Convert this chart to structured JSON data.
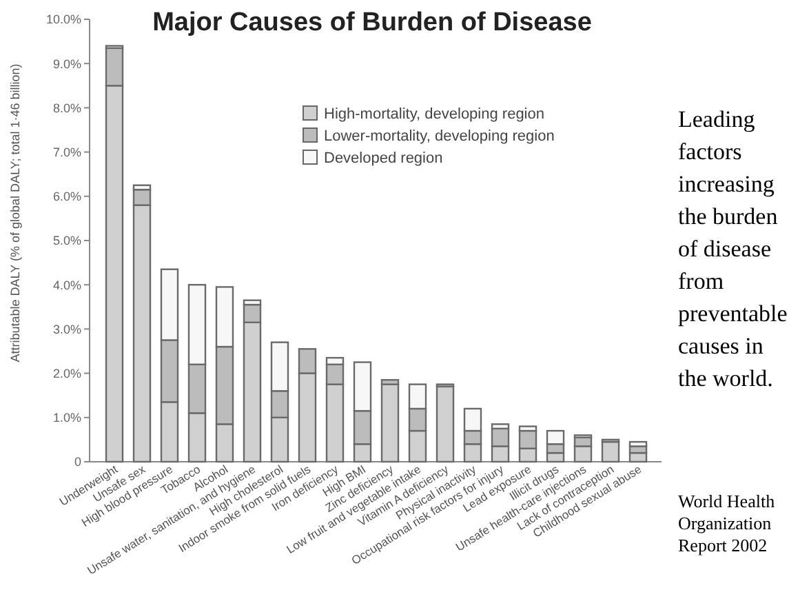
{
  "chart_data": {
    "type": "bar",
    "stacked": true,
    "title": "Major Causes of Burden of Disease",
    "ylabel": "Attributable DALY (% of global DALY; total 1·46 billion)",
    "categories": [
      "Underweight",
      "Unsafe sex",
      "High blood pressure",
      "Tobacco",
      "Alcohol",
      "Unsafe water, sanitation, and hygiene",
      "High cholesterol",
      "Indoor smoke from solid fuels",
      "Iron deficiency",
      "High BMI",
      "Zinc deficiency",
      "Low fruit and vegetable intake",
      "Vitamin A deficiency",
      "Physical inactivity",
      "Occupational risk factors for injury",
      "Lead exposure",
      "Illicit drugs",
      "Unsafe health-care injections",
      "Lack of contraception",
      "Childhood sexual abuse"
    ],
    "series": [
      {
        "name": "High-mortality, developing region",
        "color": "#d0d0d0",
        "values": [
          8.5,
          5.8,
          1.35,
          1.1,
          0.85,
          3.15,
          1.0,
          2.0,
          1.75,
          0.4,
          1.75,
          0.7,
          1.7,
          0.4,
          0.35,
          0.3,
          0.2,
          0.35,
          0.45,
          0.2
        ]
      },
      {
        "name": "Lower-mortality, developing region",
        "color": "#bcbcbc",
        "values": [
          0.85,
          0.35,
          1.4,
          1.1,
          1.75,
          0.4,
          0.6,
          0.55,
          0.45,
          0.75,
          0.1,
          0.5,
          0.05,
          0.3,
          0.4,
          0.4,
          0.2,
          0.2,
          0.05,
          0.15
        ]
      },
      {
        "name": "Developed region",
        "color": "#f7f7f7",
        "values": [
          0.05,
          0.1,
          1.6,
          1.8,
          1.35,
          0.1,
          1.1,
          0,
          0.15,
          1.1,
          0,
          0.55,
          0,
          0.5,
          0.1,
          0.1,
          0.3,
          0.05,
          0,
          0.1
        ]
      }
    ],
    "ylim": [
      0,
      10
    ],
    "yticks": [
      0,
      {
        "value": 1,
        "label": "1.0%"
      },
      {
        "value": 2,
        "label": "2.0%"
      },
      {
        "value": 3,
        "label": "3.0%"
      },
      {
        "value": 4,
        "label": "4.0%"
      },
      {
        "value": 5,
        "label": "5.0%"
      },
      {
        "value": 6,
        "label": "6.0%"
      },
      {
        "value": 7,
        "label": "7.0%"
      },
      {
        "value": 8,
        "label": "8.0%"
      },
      {
        "value": 9,
        "label": "9.0%"
      },
      {
        "value": 10,
        "label": "10.0%"
      }
    ],
    "legend": "top",
    "grid": false,
    "annotations": [
      "Leading factors increasing the burden of disease from preventable causes in the world.",
      "World Health Organization Report 2002"
    ]
  }
}
